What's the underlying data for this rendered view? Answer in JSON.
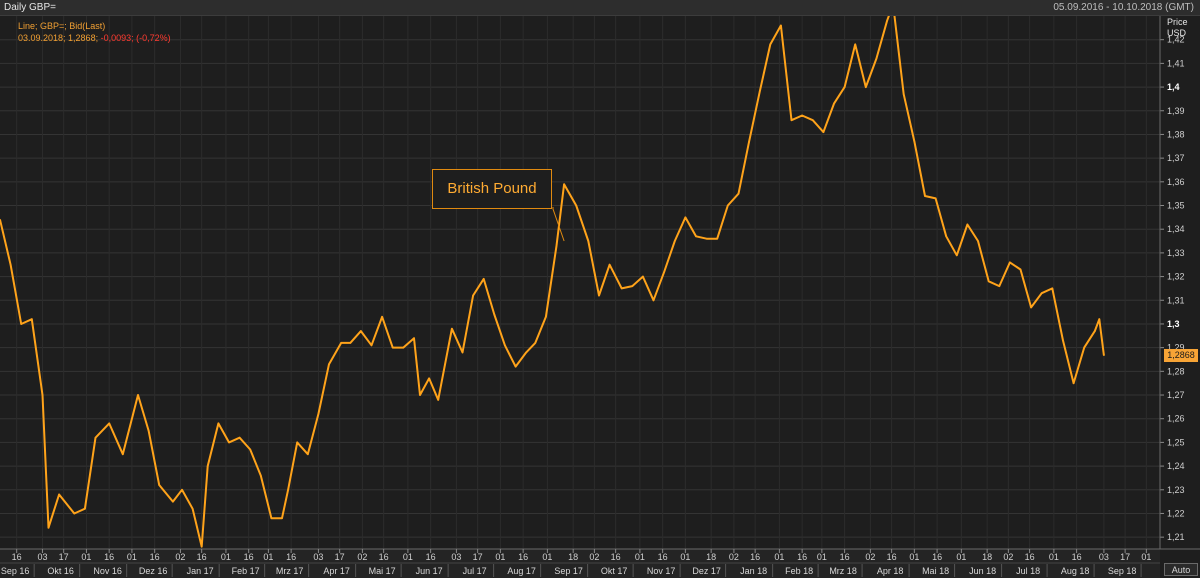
{
  "window": {
    "title": "Daily GBP=",
    "date_range": "05.09.2016 - 10.10.2018 (GMT)"
  },
  "legend": {
    "line1": "Line; GBP=; Bid(Last)",
    "line2_prefix": "03.09.2018; 1,2868; ",
    "line2_change": "-0,0093; (-0,72%)"
  },
  "annotation": {
    "text": "British Pound"
  },
  "axis": {
    "price_label": "Price",
    "unit_label": "USD",
    "last_value": "1,2868",
    "auto_label": "Auto"
  },
  "colors": {
    "line": "#ffa31a",
    "background": "#1e1e1e",
    "grid": "#333333",
    "negative": "#ff3b30"
  },
  "chart_data": {
    "type": "line",
    "series": [
      {
        "name": "GBP=",
        "x": [
          "2016-09-05",
          "2016-09-12",
          "2016-09-19",
          "2016-09-26",
          "2016-10-03",
          "2016-10-07",
          "2016-10-14",
          "2016-10-24",
          "2016-10-31",
          "2016-11-07",
          "2016-11-16",
          "2016-11-25",
          "2016-12-05",
          "2016-12-12",
          "2016-12-19",
          "2016-12-28",
          "2017-01-03",
          "2017-01-10",
          "2017-01-16",
          "2017-01-20",
          "2017-01-27",
          "2017-02-03",
          "2017-02-10",
          "2017-02-17",
          "2017-02-24",
          "2017-03-03",
          "2017-03-10",
          "2017-03-14",
          "2017-03-20",
          "2017-03-27",
          "2017-04-03",
          "2017-04-10",
          "2017-04-18",
          "2017-04-24",
          "2017-05-01",
          "2017-05-08",
          "2017-05-15",
          "2017-05-22",
          "2017-05-29",
          "2017-06-05",
          "2017-06-09",
          "2017-06-15",
          "2017-06-21",
          "2017-06-30",
          "2017-07-07",
          "2017-07-14",
          "2017-07-21",
          "2017-07-28",
          "2017-08-04",
          "2017-08-11",
          "2017-08-18",
          "2017-08-24",
          "2017-08-31",
          "2017-09-07",
          "2017-09-12",
          "2017-09-20",
          "2017-09-28",
          "2017-10-05",
          "2017-10-12",
          "2017-10-20",
          "2017-10-27",
          "2017-11-03",
          "2017-11-10",
          "2017-11-17",
          "2017-11-24",
          "2017-12-01",
          "2017-12-08",
          "2017-12-15",
          "2017-12-22",
          "2017-12-29",
          "2018-01-05",
          "2018-01-12",
          "2018-01-19",
          "2018-01-26",
          "2018-02-02",
          "2018-02-09",
          "2018-02-16",
          "2018-02-23",
          "2018-03-02",
          "2018-03-09",
          "2018-03-16",
          "2018-03-23",
          "2018-03-30",
          "2018-04-06",
          "2018-04-13",
          "2018-04-17",
          "2018-04-24",
          "2018-05-01",
          "2018-05-08",
          "2018-05-15",
          "2018-05-22",
          "2018-05-29",
          "2018-06-05",
          "2018-06-12",
          "2018-06-19",
          "2018-06-26",
          "2018-07-03",
          "2018-07-10",
          "2018-07-17",
          "2018-07-24",
          "2018-07-31",
          "2018-08-07",
          "2018-08-14",
          "2018-08-21",
          "2018-08-28",
          "2018-08-31",
          "2018-09-03"
        ],
        "values": [
          1.344,
          1.325,
          1.3,
          1.302,
          1.27,
          1.214,
          1.228,
          1.22,
          1.222,
          1.252,
          1.258,
          1.245,
          1.27,
          1.255,
          1.232,
          1.225,
          1.23,
          1.222,
          1.206,
          1.24,
          1.258,
          1.25,
          1.252,
          1.247,
          1.236,
          1.218,
          1.218,
          1.23,
          1.25,
          1.245,
          1.262,
          1.283,
          1.292,
          1.292,
          1.297,
          1.291,
          1.303,
          1.29,
          1.29,
          1.294,
          1.27,
          1.277,
          1.268,
          1.298,
          1.288,
          1.312,
          1.319,
          1.304,
          1.291,
          1.282,
          1.288,
          1.292,
          1.303,
          1.333,
          1.359,
          1.35,
          1.335,
          1.312,
          1.325,
          1.315,
          1.316,
          1.32,
          1.31,
          1.322,
          1.335,
          1.345,
          1.337,
          1.336,
          1.336,
          1.35,
          1.355,
          1.377,
          1.398,
          1.418,
          1.426,
          1.386,
          1.388,
          1.386,
          1.381,
          1.393,
          1.4,
          1.418,
          1.4,
          1.412,
          1.428,
          1.435,
          1.397,
          1.377,
          1.354,
          1.353,
          1.337,
          1.329,
          1.342,
          1.335,
          1.318,
          1.316,
          1.326,
          1.323,
          1.307,
          1.313,
          1.315,
          1.293,
          1.275,
          1.29,
          1.297,
          1.302,
          1.2868
        ]
      }
    ],
    "ylim": [
      1.205,
      1.43
    ],
    "y_ticks": [
      1.21,
      1.22,
      1.23,
      1.24,
      1.25,
      1.26,
      1.27,
      1.28,
      1.29,
      1.3,
      1.31,
      1.32,
      1.33,
      1.34,
      1.35,
      1.36,
      1.37,
      1.38,
      1.39,
      1.4,
      1.41,
      1.42
    ],
    "y_tick_labels": [
      "1,21",
      "1,22",
      "1,23",
      "1,24",
      "1,25",
      "1,26",
      "1,27",
      "1,28",
      "1,29",
      "1,3",
      "1,31",
      "1,32",
      "1,33",
      "1,34",
      "1,35",
      "1,36",
      "1,37",
      "1,38",
      "1,39",
      "1,4",
      "1,41",
      "1,42"
    ],
    "x_day_ticks": [
      {
        "d": "2016-09-16",
        "label": "16"
      },
      {
        "d": "2016-10-03",
        "label": "03"
      },
      {
        "d": "2016-10-17",
        "label": "17"
      },
      {
        "d": "2016-11-01",
        "label": "01"
      },
      {
        "d": "2016-11-16",
        "label": "16"
      },
      {
        "d": "2016-12-01",
        "label": "01"
      },
      {
        "d": "2016-12-16",
        "label": "16"
      },
      {
        "d": "2017-01-02",
        "label": "02"
      },
      {
        "d": "2017-01-16",
        "label": "16"
      },
      {
        "d": "2017-02-01",
        "label": "01"
      },
      {
        "d": "2017-02-16",
        "label": "16"
      },
      {
        "d": "2017-03-01",
        "label": "01"
      },
      {
        "d": "2017-03-16",
        "label": "16"
      },
      {
        "d": "2017-04-03",
        "label": "03"
      },
      {
        "d": "2017-04-17",
        "label": "17"
      },
      {
        "d": "2017-05-02",
        "label": "02"
      },
      {
        "d": "2017-05-16",
        "label": "16"
      },
      {
        "d": "2017-06-01",
        "label": "01"
      },
      {
        "d": "2017-06-16",
        "label": "16"
      },
      {
        "d": "2017-07-03",
        "label": "03"
      },
      {
        "d": "2017-07-17",
        "label": "17"
      },
      {
        "d": "2017-08-01",
        "label": "01"
      },
      {
        "d": "2017-08-16",
        "label": "16"
      },
      {
        "d": "2017-09-01",
        "label": "01"
      },
      {
        "d": "2017-09-18",
        "label": "18"
      },
      {
        "d": "2017-10-02",
        "label": "02"
      },
      {
        "d": "2017-10-16",
        "label": "16"
      },
      {
        "d": "2017-11-01",
        "label": "01"
      },
      {
        "d": "2017-11-16",
        "label": "16"
      },
      {
        "d": "2017-12-01",
        "label": "01"
      },
      {
        "d": "2017-12-18",
        "label": "18"
      },
      {
        "d": "2018-01-02",
        "label": "02"
      },
      {
        "d": "2018-01-16",
        "label": "16"
      },
      {
        "d": "2018-02-01",
        "label": "01"
      },
      {
        "d": "2018-02-16",
        "label": "16"
      },
      {
        "d": "2018-03-01",
        "label": "01"
      },
      {
        "d": "2018-03-16",
        "label": "16"
      },
      {
        "d": "2018-04-02",
        "label": "02"
      },
      {
        "d": "2018-04-16",
        "label": "16"
      },
      {
        "d": "2018-05-01",
        "label": "01"
      },
      {
        "d": "2018-05-16",
        "label": "16"
      },
      {
        "d": "2018-06-01",
        "label": "01"
      },
      {
        "d": "2018-06-18",
        "label": "18"
      },
      {
        "d": "2018-07-02",
        "label": "02"
      },
      {
        "d": "2018-07-16",
        "label": "16"
      },
      {
        "d": "2018-08-01",
        "label": "01"
      },
      {
        "d": "2018-08-16",
        "label": "16"
      },
      {
        "d": "2018-09-03",
        "label": "03"
      },
      {
        "d": "2018-09-17",
        "label": "17"
      },
      {
        "d": "2018-10-01",
        "label": "01"
      }
    ],
    "x_month_ticks": [
      {
        "d": "2016-09-15",
        "label": "Sep 16"
      },
      {
        "d": "2016-10-15",
        "label": "Okt 16"
      },
      {
        "d": "2016-11-15",
        "label": "Nov 16"
      },
      {
        "d": "2016-12-15",
        "label": "Dez 16"
      },
      {
        "d": "2017-01-15",
        "label": "Jan 17"
      },
      {
        "d": "2017-02-14",
        "label": "Feb 17"
      },
      {
        "d": "2017-03-15",
        "label": "Mrz 17"
      },
      {
        "d": "2017-04-15",
        "label": "Apr 17"
      },
      {
        "d": "2017-05-15",
        "label": "Mai 17"
      },
      {
        "d": "2017-06-15",
        "label": "Jun 17"
      },
      {
        "d": "2017-07-15",
        "label": "Jul 17"
      },
      {
        "d": "2017-08-15",
        "label": "Aug 17"
      },
      {
        "d": "2017-09-15",
        "label": "Sep 17"
      },
      {
        "d": "2017-10-15",
        "label": "Okt 17"
      },
      {
        "d": "2017-11-15",
        "label": "Nov 17"
      },
      {
        "d": "2017-12-15",
        "label": "Dez 17"
      },
      {
        "d": "2018-01-15",
        "label": "Jan 18"
      },
      {
        "d": "2018-02-14",
        "label": "Feb 18"
      },
      {
        "d": "2018-03-15",
        "label": "Mrz 18"
      },
      {
        "d": "2018-04-15",
        "label": "Apr 18"
      },
      {
        "d": "2018-05-15",
        "label": "Mai 18"
      },
      {
        "d": "2018-06-15",
        "label": "Jun 18"
      },
      {
        "d": "2018-07-15",
        "label": "Jul 18"
      },
      {
        "d": "2018-08-15",
        "label": "Aug 18"
      },
      {
        "d": "2018-09-15",
        "label": "Sep 18"
      }
    ],
    "grid": true,
    "annotation_point": "2017-09-12"
  }
}
